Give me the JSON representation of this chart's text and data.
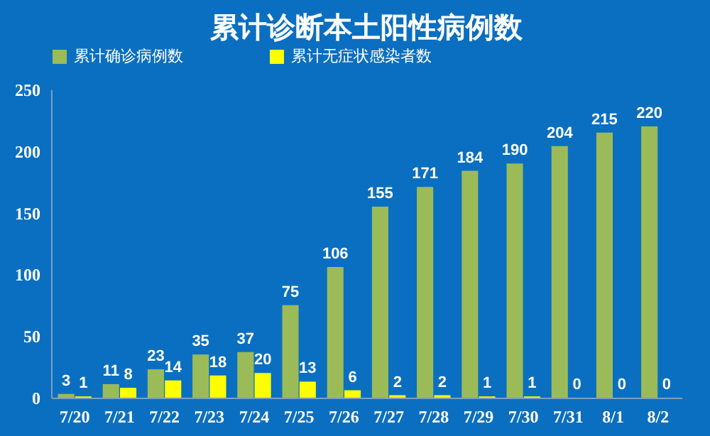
{
  "chart_data": {
    "type": "bar",
    "title": "累计诊断本土阳性病例数",
    "categories": [
      "7/20",
      "7/21",
      "7/22",
      "7/23",
      "7/24",
      "7/25",
      "7/26",
      "7/27",
      "7/28",
      "7/29",
      "7/30",
      "7/31",
      "8/1",
      "8/2"
    ],
    "series": [
      {
        "name": "累计确诊病例数",
        "color": "#9bbb59",
        "values": [
          3,
          11,
          23,
          35,
          37,
          75,
          106,
          155,
          171,
          184,
          190,
          204,
          215,
          220
        ]
      },
      {
        "name": "累计无症状感染者数",
        "color": "#ffff00",
        "values": [
          1,
          8,
          14,
          18,
          20,
          13,
          6,
          2,
          2,
          1,
          1,
          0,
          0,
          0
        ]
      }
    ],
    "ylim": [
      0,
      250
    ],
    "yticks": [
      0,
      50,
      100,
      150,
      200,
      250
    ],
    "grid": false,
    "legend": "top",
    "data_labels": true
  }
}
